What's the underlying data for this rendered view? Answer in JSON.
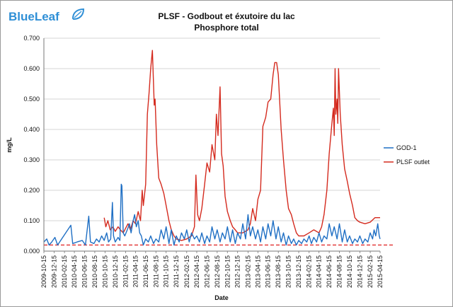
{
  "logo": {
    "text": "BlueLeaf"
  },
  "chart_data": {
    "type": "line",
    "title": "PLSF - Godbout et éxutoire du lac",
    "subtitle": "Phosphore total",
    "xlabel": "Date",
    "ylabel": "mg/L",
    "ylim": [
      0,
      0.7
    ],
    "y_ticks": [
      "0.000",
      "0.100",
      "0.200",
      "0.300",
      "0.400",
      "0.500",
      "0.600",
      "0.700"
    ],
    "x_ticks": [
      "2009-10-15",
      "2009-12-15",
      "2010-02-15",
      "2010-04-15",
      "2010-06-15",
      "2010-08-15",
      "2010-10-15",
      "2010-12-15",
      "2011-02-15",
      "2011-04-15",
      "2011-06-15",
      "2011-08-15",
      "2011-10-15",
      "2011-12-15",
      "2012-02-15",
      "2012-04-15",
      "2012-06-15",
      "2012-08-15",
      "2012-10-15",
      "2012-12-15",
      "2013-02-15",
      "2013-04-15",
      "2013-06-15",
      "2013-08-15",
      "2013-10-15",
      "2013-12-15",
      "2014-02-15",
      "2014-04-15",
      "2014-06-15",
      "2014-08-15",
      "2014-10-15",
      "2014-12-15",
      "2015-02-15",
      "2015-04-15"
    ],
    "x_range": [
      "2009-10-15",
      "2015-04-15"
    ],
    "legend_position": "right",
    "grid": "horizontal",
    "reference_line": {
      "value": 0.02,
      "color": "#e02020",
      "style": "dashed"
    },
    "series": [
      {
        "name": "GOD-1",
        "color": "#1f6fc4",
        "points": [
          [
            "2009-10-15",
            0.03
          ],
          [
            "2009-11-01",
            0.04
          ],
          [
            "2009-11-15",
            0.02
          ],
          [
            "2009-12-01",
            0.03
          ],
          [
            "2009-12-20",
            0.045
          ],
          [
            "2010-01-05",
            0.02
          ],
          [
            "2010-03-25",
            0.085
          ],
          [
            "2010-04-05",
            0.025
          ],
          [
            "2010-05-01",
            0.03
          ],
          [
            "2010-06-01",
            0.035
          ],
          [
            "2010-06-20",
            0.02
          ],
          [
            "2010-07-10",
            0.115
          ],
          [
            "2010-07-20",
            0.03
          ],
          [
            "2010-08-10",
            0.025
          ],
          [
            "2010-08-25",
            0.04
          ],
          [
            "2010-09-10",
            0.03
          ],
          [
            "2010-09-25",
            0.05
          ],
          [
            "2010-10-10",
            0.035
          ],
          [
            "2010-10-25",
            0.06
          ],
          [
            "2010-11-05",
            0.03
          ],
          [
            "2010-11-18",
            0.04
          ],
          [
            "2010-11-28",
            0.16
          ],
          [
            "2010-12-05",
            0.05
          ],
          [
            "2010-12-15",
            0.03
          ],
          [
            "2011-01-01",
            0.045
          ],
          [
            "2011-01-12",
            0.035
          ],
          [
            "2011-01-20",
            0.22
          ],
          [
            "2011-01-24",
            0.215
          ],
          [
            "2011-02-01",
            0.06
          ],
          [
            "2011-02-10",
            0.05
          ],
          [
            "2011-02-25",
            0.07
          ],
          [
            "2011-03-10",
            0.09
          ],
          [
            "2011-03-20",
            0.06
          ],
          [
            "2011-04-01",
            0.1
          ],
          [
            "2011-04-10",
            0.12
          ],
          [
            "2011-04-20",
            0.08
          ],
          [
            "2011-05-01",
            0.1
          ],
          [
            "2011-05-10",
            0.06
          ],
          [
            "2011-05-20",
            0.05
          ],
          [
            "2011-06-01",
            0.02
          ],
          [
            "2011-06-15",
            0.04
          ],
          [
            "2011-07-01",
            0.03
          ],
          [
            "2011-07-15",
            0.05
          ],
          [
            "2011-08-01",
            0.025
          ],
          [
            "2011-08-15",
            0.04
          ],
          [
            "2011-09-01",
            0.03
          ],
          [
            "2011-09-15",
            0.07
          ],
          [
            "2011-10-01",
            0.04
          ],
          [
            "2011-10-15",
            0.08
          ],
          [
            "2011-11-01",
            0.025
          ],
          [
            "2011-11-15",
            0.07
          ],
          [
            "2011-12-01",
            0.02
          ],
          [
            "2011-12-15",
            0.05
          ],
          [
            "2012-01-01",
            0.03
          ],
          [
            "2012-01-15",
            0.06
          ],
          [
            "2012-02-01",
            0.04
          ],
          [
            "2012-02-15",
            0.07
          ],
          [
            "2012-03-01",
            0.03
          ],
          [
            "2012-03-15",
            0.06
          ],
          [
            "2012-04-01",
            0.04
          ],
          [
            "2012-04-15",
            0.05
          ],
          [
            "2012-05-01",
            0.03
          ],
          [
            "2012-05-15",
            0.06
          ],
          [
            "2012-06-01",
            0.025
          ],
          [
            "2012-06-15",
            0.05
          ],
          [
            "2012-07-01",
            0.03
          ],
          [
            "2012-07-15",
            0.08
          ],
          [
            "2012-08-01",
            0.04
          ],
          [
            "2012-08-15",
            0.07
          ],
          [
            "2012-09-01",
            0.03
          ],
          [
            "2012-09-15",
            0.06
          ],
          [
            "2012-10-01",
            0.04
          ],
          [
            "2012-10-15",
            0.08
          ],
          [
            "2012-11-01",
            0.03
          ],
          [
            "2012-11-15",
            0.07
          ],
          [
            "2012-12-01",
            0.025
          ],
          [
            "2012-12-15",
            0.06
          ],
          [
            "2013-01-01",
            0.04
          ],
          [
            "2013-01-15",
            0.09
          ],
          [
            "2013-02-01",
            0.04
          ],
          [
            "2013-02-15",
            0.12
          ],
          [
            "2013-03-01",
            0.05
          ],
          [
            "2013-03-15",
            0.08
          ],
          [
            "2013-04-01",
            0.04
          ],
          [
            "2013-04-15",
            0.07
          ],
          [
            "2013-05-01",
            0.03
          ],
          [
            "2013-05-15",
            0.08
          ],
          [
            "2013-06-01",
            0.04
          ],
          [
            "2013-06-15",
            0.09
          ],
          [
            "2013-07-01",
            0.05
          ],
          [
            "2013-07-15",
            0.1
          ],
          [
            "2013-08-01",
            0.04
          ],
          [
            "2013-08-15",
            0.08
          ],
          [
            "2013-09-01",
            0.03
          ],
          [
            "2013-09-15",
            0.06
          ],
          [
            "2013-10-01",
            0.02
          ],
          [
            "2013-10-15",
            0.05
          ],
          [
            "2013-11-01",
            0.025
          ],
          [
            "2013-11-15",
            0.04
          ],
          [
            "2013-12-01",
            0.02
          ],
          [
            "2013-12-15",
            0.035
          ],
          [
            "2014-01-01",
            0.025
          ],
          [
            "2014-01-15",
            0.04
          ],
          [
            "2014-02-01",
            0.03
          ],
          [
            "2014-02-15",
            0.05
          ],
          [
            "2014-03-01",
            0.025
          ],
          [
            "2014-03-15",
            0.045
          ],
          [
            "2014-04-01",
            0.03
          ],
          [
            "2014-04-15",
            0.06
          ],
          [
            "2014-05-01",
            0.03
          ],
          [
            "2014-05-15",
            0.05
          ],
          [
            "2014-06-01",
            0.04
          ],
          [
            "2014-06-15",
            0.09
          ],
          [
            "2014-07-01",
            0.05
          ],
          [
            "2014-07-15",
            0.08
          ],
          [
            "2014-08-01",
            0.04
          ],
          [
            "2014-08-15",
            0.09
          ],
          [
            "2014-09-01",
            0.03
          ],
          [
            "2014-09-15",
            0.07
          ],
          [
            "2014-10-01",
            0.03
          ],
          [
            "2014-10-15",
            0.05
          ],
          [
            "2014-11-01",
            0.025
          ],
          [
            "2014-11-15",
            0.04
          ],
          [
            "2014-12-01",
            0.03
          ],
          [
            "2014-12-15",
            0.05
          ],
          [
            "2015-01-01",
            0.025
          ],
          [
            "2015-01-15",
            0.04
          ],
          [
            "2015-02-01",
            0.03
          ],
          [
            "2015-02-15",
            0.06
          ],
          [
            "2015-03-01",
            0.04
          ],
          [
            "2015-03-10",
            0.07
          ],
          [
            "2015-03-20",
            0.05
          ],
          [
            "2015-04-01",
            0.09
          ],
          [
            "2015-04-10",
            0.05
          ],
          [
            "2015-04-15",
            0.04
          ]
        ]
      },
      {
        "name": "PLSF outlet",
        "color": "#d42a1e",
        "points": [
          [
            "2010-10-10",
            0.11
          ],
          [
            "2010-10-20",
            0.08
          ],
          [
            "2010-11-01",
            0.1
          ],
          [
            "2010-11-15",
            0.07
          ],
          [
            "2010-12-01",
            0.08
          ],
          [
            "2010-12-15",
            0.065
          ],
          [
            "2011-01-01",
            0.08
          ],
          [
            "2011-01-15",
            0.07
          ],
          [
            "2011-02-01",
            0.06
          ],
          [
            "2011-02-15",
            0.075
          ],
          [
            "2011-03-01",
            0.09
          ],
          [
            "2011-03-15",
            0.07
          ],
          [
            "2011-04-01",
            0.1
          ],
          [
            "2011-04-15",
            0.09
          ],
          [
            "2011-05-01",
            0.13
          ],
          [
            "2011-05-15",
            0.1
          ],
          [
            "2011-05-25",
            0.2
          ],
          [
            "2011-06-01",
            0.15
          ],
          [
            "2011-06-15",
            0.22
          ],
          [
            "2011-06-25",
            0.45
          ],
          [
            "2011-07-05",
            0.52
          ],
          [
            "2011-07-15",
            0.6
          ],
          [
            "2011-07-25",
            0.66
          ],
          [
            "2011-08-01",
            0.55
          ],
          [
            "2011-08-05",
            0.48
          ],
          [
            "2011-08-10",
            0.5
          ],
          [
            "2011-08-20",
            0.35
          ],
          [
            "2011-09-01",
            0.24
          ],
          [
            "2011-09-15",
            0.22
          ],
          [
            "2011-10-01",
            0.19
          ],
          [
            "2011-10-15",
            0.15
          ],
          [
            "2011-11-01",
            0.1
          ],
          [
            "2011-11-15",
            0.07
          ],
          [
            "2011-12-01",
            0.05
          ],
          [
            "2011-12-15",
            0.04
          ],
          [
            "2012-01-15",
            0.035
          ],
          [
            "2012-02-15",
            0.04
          ],
          [
            "2012-03-15",
            0.05
          ],
          [
            "2012-04-01",
            0.08
          ],
          [
            "2012-04-10",
            0.25
          ],
          [
            "2012-04-20",
            0.12
          ],
          [
            "2012-05-01",
            0.1
          ],
          [
            "2012-05-15",
            0.14
          ],
          [
            "2012-06-01",
            0.22
          ],
          [
            "2012-06-15",
            0.29
          ],
          [
            "2012-07-01",
            0.26
          ],
          [
            "2012-07-15",
            0.35
          ],
          [
            "2012-08-01",
            0.3
          ],
          [
            "2012-08-10",
            0.45
          ],
          [
            "2012-08-20",
            0.38
          ],
          [
            "2012-09-01",
            0.54
          ],
          [
            "2012-09-10",
            0.32
          ],
          [
            "2012-09-20",
            0.28
          ],
          [
            "2012-10-01",
            0.18
          ],
          [
            "2012-10-15",
            0.13
          ],
          [
            "2012-11-01",
            0.1
          ],
          [
            "2012-11-15",
            0.08
          ],
          [
            "2012-12-01",
            0.07
          ],
          [
            "2012-12-15",
            0.06
          ],
          [
            "2013-01-15",
            0.06
          ],
          [
            "2013-02-15",
            0.07
          ],
          [
            "2013-03-01",
            0.09
          ],
          [
            "2013-03-15",
            0.14
          ],
          [
            "2013-04-01",
            0.1
          ],
          [
            "2013-04-15",
            0.17
          ],
          [
            "2013-05-01",
            0.2
          ],
          [
            "2013-05-15",
            0.41
          ],
          [
            "2013-06-01",
            0.44
          ],
          [
            "2013-06-15",
            0.49
          ],
          [
            "2013-07-01",
            0.5
          ],
          [
            "2013-07-15",
            0.58
          ],
          [
            "2013-07-25",
            0.62
          ],
          [
            "2013-08-05",
            0.62
          ],
          [
            "2013-08-15",
            0.58
          ],
          [
            "2013-09-01",
            0.4
          ],
          [
            "2013-09-15",
            0.3
          ],
          [
            "2013-10-01",
            0.2
          ],
          [
            "2013-10-15",
            0.14
          ],
          [
            "2013-11-01",
            0.12
          ],
          [
            "2013-11-15",
            0.09
          ],
          [
            "2013-12-01",
            0.06
          ],
          [
            "2013-12-15",
            0.05
          ],
          [
            "2014-01-15",
            0.05
          ],
          [
            "2014-02-15",
            0.06
          ],
          [
            "2014-03-15",
            0.07
          ],
          [
            "2014-04-15",
            0.06
          ],
          [
            "2014-05-01",
            0.08
          ],
          [
            "2014-05-15",
            0.12
          ],
          [
            "2014-06-01",
            0.2
          ],
          [
            "2014-06-15",
            0.32
          ],
          [
            "2014-07-01",
            0.42
          ],
          [
            "2014-07-10",
            0.47
          ],
          [
            "2014-07-15",
            0.38
          ],
          [
            "2014-07-20",
            0.6
          ],
          [
            "2014-07-25",
            0.45
          ],
          [
            "2014-08-01",
            0.5
          ],
          [
            "2014-08-05",
            0.42
          ],
          [
            "2014-08-10",
            0.6
          ],
          [
            "2014-08-20",
            0.45
          ],
          [
            "2014-09-01",
            0.35
          ],
          [
            "2014-09-15",
            0.27
          ],
          [
            "2014-10-01",
            0.23
          ],
          [
            "2014-10-15",
            0.19
          ],
          [
            "2014-11-01",
            0.15
          ],
          [
            "2014-11-15",
            0.11
          ],
          [
            "2014-12-01",
            0.1
          ],
          [
            "2014-12-15",
            0.095
          ],
          [
            "2015-01-15",
            0.09
          ],
          [
            "2015-02-15",
            0.095
          ],
          [
            "2015-03-15",
            0.11
          ],
          [
            "2015-04-01",
            0.11
          ],
          [
            "2015-04-15",
            0.11
          ]
        ]
      }
    ]
  }
}
